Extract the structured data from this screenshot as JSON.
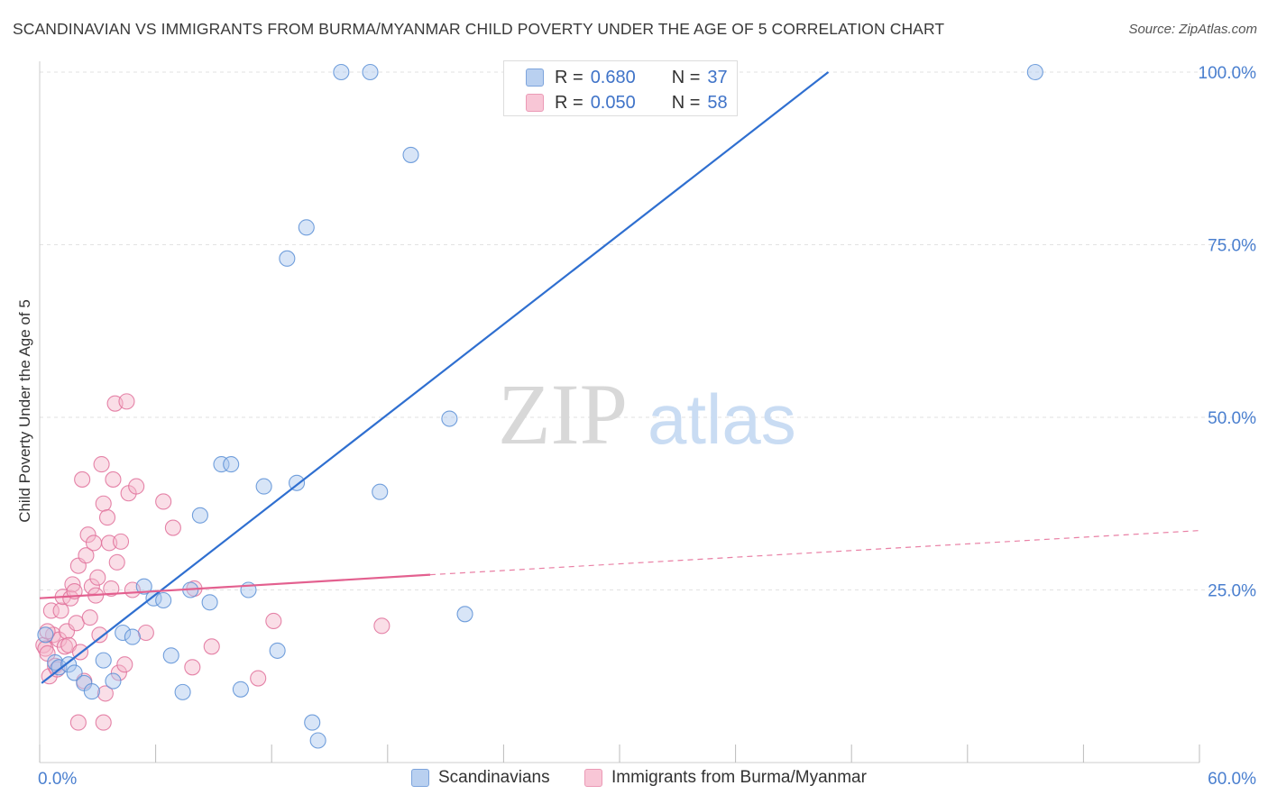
{
  "title": "SCANDINAVIAN VS IMMIGRANTS FROM BURMA/MYANMAR CHILD POVERTY UNDER THE AGE OF 5 CORRELATION CHART",
  "source": "Source: ZipAtlas.com",
  "watermark": {
    "zip": "ZIP",
    "atlas": "atlas"
  },
  "stats": {
    "blue": {
      "r_label": "R =",
      "r_value": "0.680",
      "n_label": "N =",
      "n_value": "37"
    },
    "pink": {
      "r_label": "R =",
      "r_value": "0.050",
      "n_label": "N =",
      "n_value": "58"
    }
  },
  "chart_data": {
    "type": "scatter",
    "title": "SCANDINAVIAN VS IMMIGRANTS FROM BURMA/MYANMAR CHILD POVERTY UNDER THE AGE OF 5 CORRELATION CHART",
    "xlabel": "",
    "ylabel": "Child Poverty Under the Age of 5",
    "xlim": [
      0,
      60
    ],
    "ylim": [
      0,
      100
    ],
    "x_tick_labels": [
      "0.0%",
      "60.0%"
    ],
    "y_tick_labels": [
      "25.0%",
      "50.0%",
      "75.0%",
      "100.0%"
    ],
    "y_ticks": [
      25,
      50,
      75,
      100
    ],
    "grid": true,
    "legend_position": "bottom",
    "colors": {
      "blue": "#5b8fd6",
      "blue_fill": "#a9c6ee",
      "pink": "#e0709a",
      "pink_fill": "#f4b6ca",
      "blue_line": "#2f6fd0",
      "pink_line": "#e3608f"
    },
    "series": [
      {
        "name": "Scandinavians",
        "color": "blue",
        "points": [
          [
            0.3,
            18.5
          ],
          [
            0.8,
            14.5
          ],
          [
            1.0,
            13.8
          ],
          [
            1.5,
            14.2
          ],
          [
            1.8,
            13.0
          ],
          [
            2.3,
            11.5
          ],
          [
            2.7,
            10.3
          ],
          [
            3.3,
            14.8
          ],
          [
            3.8,
            11.8
          ],
          [
            4.3,
            18.8
          ],
          [
            4.8,
            18.2
          ],
          [
            5.4,
            25.5
          ],
          [
            5.9,
            23.8
          ],
          [
            6.4,
            23.5
          ],
          [
            6.8,
            15.5
          ],
          [
            7.4,
            10.2
          ],
          [
            7.8,
            25.0
          ],
          [
            8.3,
            35.8
          ],
          [
            8.8,
            23.2
          ],
          [
            9.4,
            43.2
          ],
          [
            9.9,
            43.2
          ],
          [
            10.4,
            10.6
          ],
          [
            10.8,
            25.0
          ],
          [
            11.6,
            40.0
          ],
          [
            12.3,
            16.2
          ],
          [
            12.8,
            73.0
          ],
          [
            13.3,
            40.5
          ],
          [
            13.8,
            77.5
          ],
          [
            14.1,
            5.8
          ],
          [
            14.4,
            3.2
          ],
          [
            15.6,
            100
          ],
          [
            17.1,
            100
          ],
          [
            17.6,
            39.2
          ],
          [
            19.2,
            88.0
          ],
          [
            21.2,
            49.8
          ],
          [
            22.0,
            21.5
          ],
          [
            51.5,
            100
          ]
        ]
      },
      {
        "name": "Immigrants from Burma/Myanmar",
        "color": "pink",
        "points": [
          [
            0.2,
            17.0
          ],
          [
            0.3,
            16.5
          ],
          [
            0.4,
            15.8
          ],
          [
            0.5,
            12.5
          ],
          [
            0.6,
            22.0
          ],
          [
            0.7,
            18.5
          ],
          [
            0.8,
            14.0
          ],
          [
            0.9,
            13.5
          ],
          [
            1.0,
            17.8
          ],
          [
            1.1,
            22.0
          ],
          [
            1.2,
            24.0
          ],
          [
            1.3,
            16.8
          ],
          [
            1.4,
            19.0
          ],
          [
            1.5,
            17.0
          ],
          [
            1.6,
            23.8
          ],
          [
            1.7,
            25.8
          ],
          [
            1.8,
            24.8
          ],
          [
            1.9,
            20.2
          ],
          [
            2.0,
            28.5
          ],
          [
            2.1,
            16.0
          ],
          [
            2.2,
            41.0
          ],
          [
            2.3,
            11.8
          ],
          [
            2.4,
            30.0
          ],
          [
            2.5,
            33.0
          ],
          [
            2.6,
            21.0
          ],
          [
            2.7,
            25.5
          ],
          [
            2.8,
            31.8
          ],
          [
            2.9,
            24.2
          ],
          [
            3.0,
            26.8
          ],
          [
            3.1,
            18.5
          ],
          [
            3.2,
            43.2
          ],
          [
            3.3,
            37.5
          ],
          [
            3.4,
            10.0
          ],
          [
            3.5,
            35.5
          ],
          [
            3.6,
            31.8
          ],
          [
            3.7,
            25.2
          ],
          [
            3.8,
            41.0
          ],
          [
            3.9,
            52.0
          ],
          [
            4.0,
            29.0
          ],
          [
            4.1,
            13.0
          ],
          [
            4.2,
            32.0
          ],
          [
            4.4,
            14.2
          ],
          [
            4.6,
            39.0
          ],
          [
            4.8,
            25.0
          ],
          [
            5.0,
            40.0
          ],
          [
            4.5,
            52.3
          ],
          [
            2.0,
            5.8
          ],
          [
            3.3,
            5.8
          ],
          [
            5.5,
            18.8
          ],
          [
            6.4,
            37.8
          ],
          [
            6.9,
            34.0
          ],
          [
            7.9,
            13.8
          ],
          [
            8.0,
            25.2
          ],
          [
            8.9,
            16.8
          ],
          [
            11.3,
            12.2
          ],
          [
            12.1,
            20.5
          ],
          [
            17.7,
            19.8
          ],
          [
            0.4,
            19.0
          ]
        ]
      }
    ],
    "trend_lines": [
      {
        "series": "Scandinavians",
        "x_start": 0.1,
        "y_start": 11.5,
        "x_end": 40.8,
        "y_end": 100,
        "dashed_extension": false
      },
      {
        "series": "Immigrants from Burma/Myanmar",
        "x_start": 0.0,
        "y_start": 23.8,
        "x_end": 20.2,
        "y_end": 27.2,
        "dash_x_end": 60.0,
        "dash_y_end": 33.6
      }
    ]
  },
  "legend": {
    "blue_label": "Scandinavians",
    "pink_label": "Immigrants from Burma/Myanmar"
  }
}
